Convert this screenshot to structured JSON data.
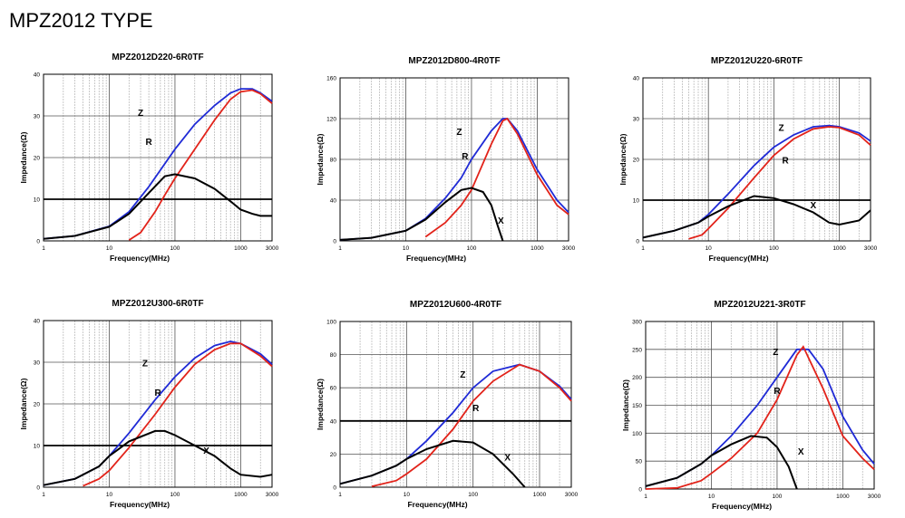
{
  "page": {
    "title": "MPZ2012 TYPE"
  },
  "colors": {
    "Z": "#1f2ad6",
    "R": "#e2231a",
    "X": "#000000",
    "grid": "#999999",
    "frame": "#000000"
  },
  "chart_data": [
    {
      "type": "line",
      "title": "MPZ2012D220-6R0TF",
      "xlabel": "Frequency(MHz)",
      "ylabel": "Impedance(Ω)",
      "x_scale": "log",
      "xlim": [
        1,
        3000
      ],
      "ylim": [
        0,
        40
      ],
      "xticks": [
        "1",
        "10",
        "100",
        "1000",
        "3000"
      ],
      "yticks": [
        "0",
        "10",
        "20",
        "30",
        "40"
      ],
      "series": [
        {
          "name": "Z",
          "x": [
            1,
            3,
            10,
            20,
            40,
            70,
            100,
            200,
            400,
            700,
            1000,
            1500,
            2000,
            3000
          ],
          "values": [
            0.5,
            1.2,
            3.5,
            7,
            13,
            18.5,
            22,
            28,
            32.5,
            35.5,
            36.5,
            36.5,
            35.5,
            33.5
          ]
        },
        {
          "name": "R",
          "x": [
            20,
            30,
            50,
            70,
            100,
            200,
            400,
            700,
            1000,
            1500,
            2000,
            3000
          ],
          "values": [
            0.2,
            2,
            7,
            11,
            15,
            22,
            29,
            34,
            35.8,
            36.2,
            35.3,
            33
          ]
        },
        {
          "name": "X",
          "x": [
            1,
            3,
            10,
            20,
            40,
            70,
            100,
            200,
            400,
            700,
            1000,
            1500,
            2000,
            3000
          ],
          "values": [
            0.5,
            1.2,
            3.4,
            6.5,
            11.5,
            15.5,
            16,
            15,
            12.5,
            9.5,
            7.5,
            6.5,
            6,
            6
          ]
        }
      ],
      "hlines": [
        10
      ],
      "labels": [
        {
          "text": "Z",
          "x": 30,
          "y": 30
        },
        {
          "text": "R",
          "x": 40,
          "y": 23
        }
      ]
    },
    {
      "type": "line",
      "title": "MPZ2012D800-4R0TF",
      "xlabel": "Frequency(MHz)",
      "ylabel": "Impedance(Ω)",
      "x_scale": "log",
      "xlim": [
        1,
        3000
      ],
      "ylim": [
        0,
        160
      ],
      "xticks": [
        "1",
        "10",
        "100",
        "1000",
        "3000"
      ],
      "yticks": [
        "0",
        "40",
        "80",
        "120",
        "160"
      ],
      "series": [
        {
          "name": "Z",
          "x": [
            1,
            3,
            10,
            20,
            40,
            70,
            100,
            200,
            300,
            350,
            500,
            1000,
            2000,
            3000
          ],
          "values": [
            1,
            3,
            10,
            22,
            42,
            62,
            80,
            108,
            120,
            120,
            108,
            70,
            40,
            28
          ]
        },
        {
          "name": "R",
          "x": [
            20,
            40,
            70,
            100,
            200,
            300,
            350,
            500,
            1000,
            2000,
            3000
          ],
          "values": [
            4,
            18,
            35,
            50,
            95,
            118,
            120,
            105,
            65,
            35,
            26
          ]
        },
        {
          "name": "X",
          "x": [
            1,
            3,
            10,
            20,
            40,
            70,
            100,
            150,
            200,
            250,
            300
          ],
          "values": [
            1,
            3,
            10,
            21,
            38,
            50,
            52,
            48,
            35,
            15,
            0
          ]
        }
      ],
      "hlines": [],
      "labels": [
        {
          "text": "Z",
          "x": 65,
          "y": 104
        },
        {
          "text": "R",
          "x": 80,
          "y": 80
        },
        {
          "text": "X",
          "x": 280,
          "y": 17
        }
      ]
    },
    {
      "type": "line",
      "title": "MPZ2012U220-6R0TF",
      "xlabel": "Frequency(MHz)",
      "ylabel": "Impedance(Ω)",
      "x_scale": "log",
      "xlim": [
        1,
        3000
      ],
      "ylim": [
        0,
        40
      ],
      "xticks": [
        "1",
        "10",
        "100",
        "1000",
        "3000"
      ],
      "yticks": [
        "0",
        "10",
        "20",
        "30",
        "40"
      ],
      "series": [
        {
          "name": "Z",
          "x": [
            1,
            3,
            7,
            10,
            20,
            50,
            100,
            200,
            400,
            700,
            1000,
            2000,
            3000
          ],
          "values": [
            0.8,
            2.5,
            4.5,
            6.5,
            11.5,
            18.5,
            23,
            26,
            28,
            28.3,
            28,
            26.5,
            24.5
          ]
        },
        {
          "name": "R",
          "x": [
            5,
            8,
            10,
            20,
            50,
            100,
            200,
            400,
            700,
            1000,
            2000,
            3000
          ],
          "values": [
            0.5,
            1.5,
            3,
            8,
            15.5,
            21,
            25,
            27.5,
            28,
            27.8,
            26,
            23.5
          ]
        },
        {
          "name": "X",
          "x": [
            1,
            3,
            7,
            10,
            20,
            50,
            100,
            200,
            400,
            700,
            1000,
            2000,
            3000
          ],
          "values": [
            0.8,
            2.5,
            4.5,
            6,
            8.5,
            11,
            10.5,
            9,
            7,
            4.5,
            4,
            5,
            7.5
          ]
        }
      ],
      "hlines": [
        10
      ],
      "labels": [
        {
          "text": "Z",
          "x": 130,
          "y": 27
        },
        {
          "text": "R",
          "x": 150,
          "y": 19
        },
        {
          "text": "X",
          "x": 400,
          "y": 8
        }
      ]
    },
    {
      "type": "line",
      "title": "MPZ2012U300-6R0TF",
      "xlabel": "Frequency(MHz)",
      "ylabel": "Impedance(Ω)",
      "x_scale": "log",
      "xlim": [
        1,
        3000
      ],
      "ylim": [
        0,
        40
      ],
      "xticks": [
        "1",
        "10",
        "100",
        "1000",
        "3000"
      ],
      "yticks": [
        "0",
        "10",
        "20",
        "30",
        "40"
      ],
      "series": [
        {
          "name": "Z",
          "x": [
            1,
            3,
            7,
            10,
            20,
            50,
            100,
            200,
            400,
            700,
            1000,
            2000,
            3000
          ],
          "values": [
            0.5,
            2,
            5,
            7.5,
            13,
            21,
            26.5,
            31,
            34,
            35,
            34.5,
            32,
            29.5
          ]
        },
        {
          "name": "R",
          "x": [
            4,
            7,
            10,
            20,
            50,
            100,
            200,
            400,
            700,
            1000,
            2000,
            3000
          ],
          "values": [
            0.3,
            2,
            4,
            9.5,
            17.5,
            24,
            29.5,
            33,
            34.5,
            34.5,
            31.5,
            29
          ]
        },
        {
          "name": "X",
          "x": [
            1,
            3,
            7,
            10,
            20,
            50,
            70,
            100,
            200,
            400,
            700,
            1000,
            2000,
            3000
          ],
          "values": [
            0.5,
            2,
            5,
            7.5,
            11,
            13.5,
            13.5,
            12.5,
            10,
            7.5,
            4.5,
            3,
            2.5,
            3
          ]
        }
      ],
      "hlines": [
        10
      ],
      "labels": [
        {
          "text": "Z",
          "x": 35,
          "y": 29
        },
        {
          "text": "R",
          "x": 55,
          "y": 22
        },
        {
          "text": "X",
          "x": 300,
          "y": 8
        }
      ]
    },
    {
      "type": "line",
      "title": "MPZ2012U600-4R0TF",
      "xlabel": "Frequency(MHz)",
      "ylabel": "Impedance(Ω)",
      "x_scale": "log",
      "xlim": [
        1,
        3000
      ],
      "ylim": [
        0,
        100
      ],
      "xticks": [
        "1",
        "10",
        "100",
        "1000",
        "3000"
      ],
      "yticks": [
        "0",
        "20",
        "40",
        "60",
        "80",
        "100"
      ],
      "series": [
        {
          "name": "Z",
          "x": [
            1,
            3,
            7,
            10,
            20,
            50,
            100,
            200,
            500,
            1000,
            2000,
            3000
          ],
          "values": [
            2,
            7,
            13,
            17,
            28,
            45,
            60,
            70,
            74,
            70,
            61,
            53
          ]
        },
        {
          "name": "R",
          "x": [
            3,
            7,
            10,
            20,
            50,
            100,
            200,
            500,
            1000,
            2000,
            3000
          ],
          "values": [
            0.5,
            4,
            8,
            17,
            35,
            52,
            64,
            74,
            70,
            60,
            52
          ]
        },
        {
          "name": "X",
          "x": [
            1,
            3,
            7,
            10,
            20,
            50,
            100,
            200,
            400,
            600
          ],
          "values": [
            2,
            7,
            13,
            17,
            23,
            28,
            27,
            20,
            8,
            0
          ]
        }
      ],
      "hlines": [
        40
      ],
      "labels": [
        {
          "text": "Z",
          "x": 70,
          "y": 66
        },
        {
          "text": "R",
          "x": 110,
          "y": 46
        },
        {
          "text": "X",
          "x": 330,
          "y": 16
        }
      ]
    },
    {
      "type": "line",
      "title": "MPZ2012U221-3R0TF",
      "xlabel": "Frequency(MHz)",
      "ylabel": "Impedance(Ω)",
      "x_scale": "log",
      "xlim": [
        1,
        3000
      ],
      "ylim": [
        0,
        300
      ],
      "xticks": [
        "1",
        "10",
        "100",
        "1000",
        "3000"
      ],
      "yticks": [
        "0",
        "50",
        "100",
        "150",
        "200",
        "250",
        "300"
      ],
      "series": [
        {
          "name": "Z",
          "x": [
            1,
            3,
            7,
            10,
            20,
            50,
            100,
            200,
            300,
            500,
            1000,
            2000,
            3000
          ],
          "values": [
            5,
            20,
            45,
            60,
            95,
            150,
            200,
            250,
            250,
            215,
            130,
            70,
            45
          ]
        },
        {
          "name": "R",
          "x": [
            1,
            3,
            7,
            10,
            20,
            50,
            100,
            200,
            250,
            500,
            1000,
            2000,
            3000
          ],
          "values": [
            0,
            2,
            15,
            28,
            55,
            100,
            160,
            240,
            255,
            180,
            95,
            55,
            35
          ]
        },
        {
          "name": "X",
          "x": [
            1,
            3,
            7,
            10,
            20,
            40,
            70,
            100,
            150,
            200
          ],
          "values": [
            5,
            20,
            45,
            60,
            80,
            95,
            92,
            75,
            40,
            0
          ]
        }
      ],
      "hlines": [],
      "labels": [
        {
          "text": "Z",
          "x": 95,
          "y": 240
        },
        {
          "text": "R",
          "x": 100,
          "y": 170
        },
        {
          "text": "X",
          "x": 230,
          "y": 62
        }
      ]
    }
  ]
}
